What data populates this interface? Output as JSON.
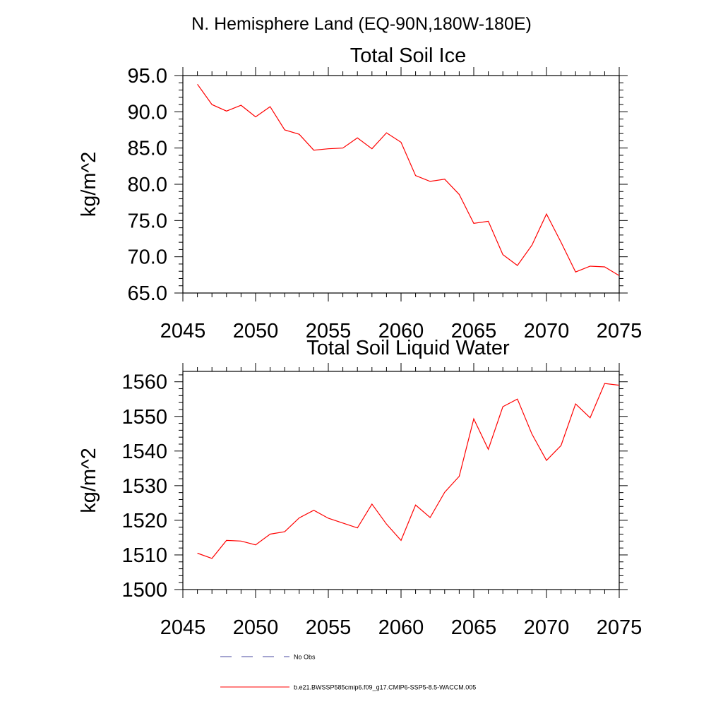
{
  "suptitle": "N. Hemisphere Land (EQ-90N,180W-180E)",
  "colors": {
    "model_line": "#ff0000",
    "obs_line": "#4a4aa0",
    "axis": "#000000"
  },
  "legend": [
    {
      "label": "No Obs",
      "style": "dashed",
      "color": "#4a4aa0"
    },
    {
      "label": "b.e21.BWSSP585cmip6.f09_g17.CMIP6-SSP5-8.5-WACCM.005",
      "style": "solid",
      "color": "#ff0000"
    }
  ],
  "chart_data": [
    {
      "type": "line",
      "title": "Total Soil Ice",
      "xlabel": "",
      "ylabel": "kg/m^2",
      "xlim": [
        2045,
        2075
      ],
      "ylim": [
        65,
        95
      ],
      "xticks": [
        2045,
        2050,
        2055,
        2060,
        2065,
        2070,
        2075
      ],
      "xtick_labels": [
        "2045",
        "2050",
        "2055",
        "2060",
        "2065",
        "2070",
        "2075"
      ],
      "yticks": [
        65,
        70,
        75,
        80,
        85,
        90,
        95
      ],
      "ytick_labels": [
        "65.0",
        "70.0",
        "75.0",
        "80.0",
        "85.0",
        "90.0",
        "95.0"
      ],
      "x": [
        2046,
        2047,
        2048,
        2049,
        2050,
        2051,
        2052,
        2053,
        2054,
        2055,
        2056,
        2057,
        2058,
        2059,
        2060,
        2061,
        2062,
        2063,
        2064,
        2065,
        2066,
        2067,
        2068,
        2069,
        2070,
        2071,
        2072,
        2073,
        2074,
        2075
      ],
      "series": [
        {
          "name": "b.e21.BWSSP585cmip6.f09_g17.CMIP6-SSP5-8.5-WACCM.005",
          "values": [
            93.8,
            91.0,
            90.1,
            90.9,
            89.3,
            90.7,
            87.5,
            86.9,
            84.7,
            84.9,
            85.0,
            86.4,
            84.9,
            87.1,
            85.8,
            81.2,
            80.4,
            80.7,
            78.6,
            74.6,
            74.9,
            70.3,
            68.8,
            71.6,
            75.9,
            72.0,
            67.9,
            68.7,
            68.6,
            67.4
          ]
        }
      ]
    },
    {
      "type": "line",
      "title": "Total Soil Liquid Water",
      "xlabel": "",
      "ylabel": "kg/m^2",
      "xlim": [
        2045,
        2075
      ],
      "ylim": [
        1500,
        1563
      ],
      "xticks": [
        2045,
        2050,
        2055,
        2060,
        2065,
        2070,
        2075
      ],
      "xtick_labels": [
        "2045",
        "2050",
        "2055",
        "2060",
        "2065",
        "2070",
        "2075"
      ],
      "yticks": [
        1500,
        1510,
        1520,
        1530,
        1540,
        1550,
        1560
      ],
      "ytick_labels": [
        "1500",
        "1510",
        "1520",
        "1530",
        "1540",
        "1550",
        "1560"
      ],
      "x": [
        2046,
        2047,
        2048,
        2049,
        2050,
        2051,
        2052,
        2053,
        2054,
        2055,
        2056,
        2057,
        2058,
        2059,
        2060,
        2061,
        2062,
        2063,
        2064,
        2065,
        2066,
        2067,
        2068,
        2069,
        2070,
        2071,
        2072,
        2073,
        2074,
        2075
      ],
      "series": [
        {
          "name": "b.e21.BWSSP585cmip6.f09_g17.CMIP6-SSP5-8.5-WACCM.005",
          "values": [
            1510.5,
            1509.0,
            1514.2,
            1514.0,
            1512.9,
            1516.0,
            1516.7,
            1520.7,
            1522.9,
            1520.6,
            1519.2,
            1517.8,
            1524.7,
            1518.9,
            1514.2,
            1524.4,
            1520.8,
            1528.1,
            1532.7,
            1549.3,
            1540.5,
            1552.8,
            1555.0,
            1544.9,
            1537.3,
            1541.6,
            1553.6,
            1549.6,
            1559.5,
            1559.0
          ]
        }
      ]
    }
  ]
}
